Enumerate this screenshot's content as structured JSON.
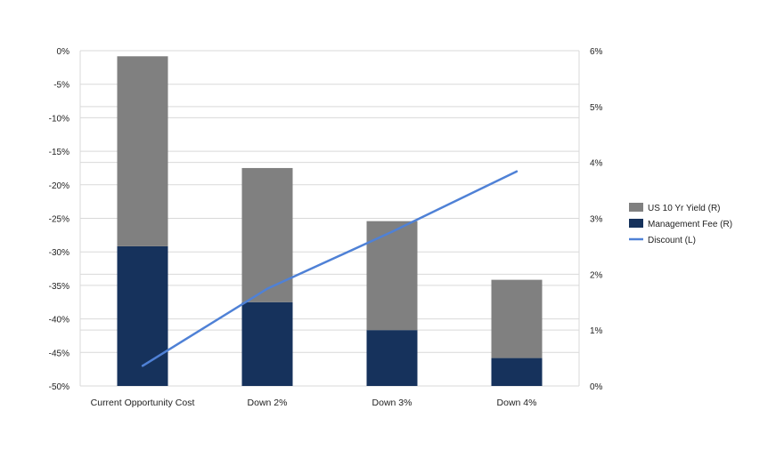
{
  "chart_data": {
    "type": "bar",
    "categories": [
      "Current Opportunity Cost",
      "Down 2%",
      "Down 3%",
      "Down 4%"
    ],
    "series": [
      {
        "name": "Management Fee (R)",
        "axis": "right",
        "stack": "total",
        "values": [
          2.5,
          1.5,
          1.0,
          0.5
        ],
        "color": "#16325c",
        "kind": "bar"
      },
      {
        "name": "US 10 Yr Yield  (R)",
        "axis": "right",
        "stack": "total",
        "values": [
          3.4,
          2.4,
          1.95,
          1.4
        ],
        "color": "#808080",
        "kind": "bar"
      },
      {
        "name": "Discount (L)",
        "axis": "left",
        "values": [
          -47.0,
          -35.5,
          -27.0,
          -18.0
        ],
        "color": "#4f81d6",
        "kind": "line"
      }
    ],
    "left_axis": {
      "ylim": [
        -50,
        0
      ],
      "ticks": [
        "0%",
        "-5%",
        "-10%",
        "-15%",
        "-20%",
        "-25%",
        "-30%",
        "-35%",
        "-40%",
        "-45%",
        "-50%"
      ]
    },
    "right_axis": {
      "ylim": [
        0,
        6
      ],
      "ticks": [
        "6%",
        "5%",
        "4%",
        "3%",
        "2%",
        "1%",
        "0%"
      ]
    },
    "grid": true,
    "legend_position": "right",
    "legend_order": [
      "US 10 Yr Yield  (R)",
      "Management Fee (R)",
      "Discount (L)"
    ]
  }
}
